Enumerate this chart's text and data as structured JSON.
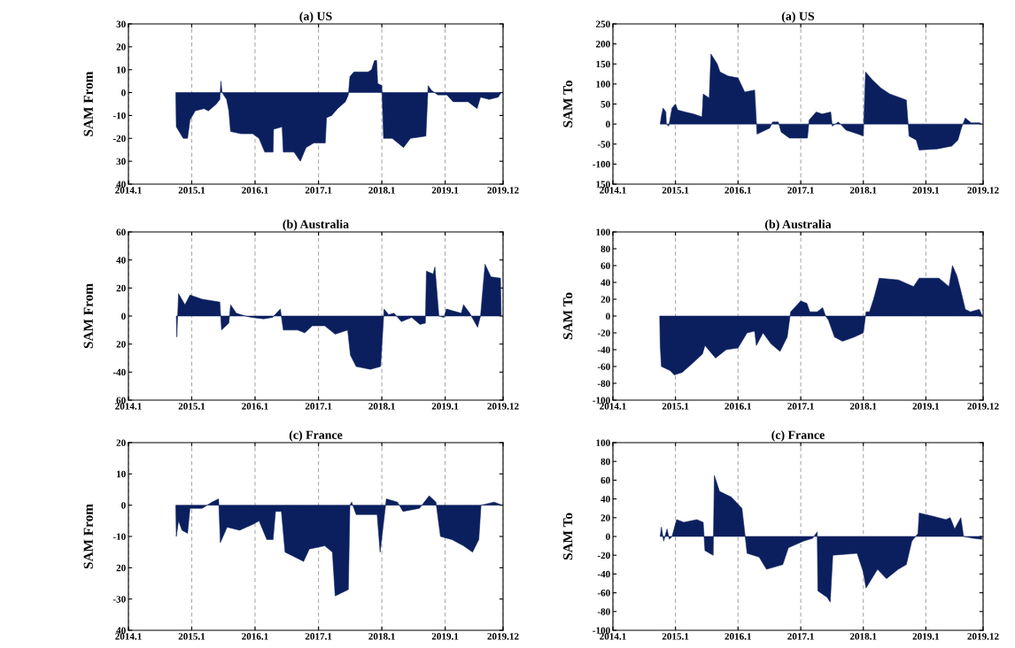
{
  "chart_data": [
    {
      "type": "area",
      "title": "(a) US",
      "ylabel": "SAM From",
      "color": "#0b1f5e",
      "grid": "x",
      "xlim": [
        "2014-01-01",
        "2019-12-01"
      ],
      "xticks": [
        {
          "value": "2014-01-01",
          "label": "2014.1"
        },
        {
          "value": "2015-01-01",
          "label": "2015.1"
        },
        {
          "value": "2016-01-01",
          "label": "2016.1"
        },
        {
          "value": "2017-01-01",
          "label": "2017.1"
        },
        {
          "value": "2018-01-01",
          "label": "2018.1"
        },
        {
          "value": "2019-01-01",
          "label": "2019.1"
        },
        {
          "value": "2019-12-01",
          "label": "2019.12"
        }
      ],
      "ylim": [
        -40,
        30
      ],
      "yticks": [
        {
          "value": -40,
          "label": "40"
        },
        {
          "value": -30,
          "label": "30"
        },
        -20,
        -10,
        0,
        10,
        20,
        30
      ],
      "x": [
        "2014-10-01",
        "2014-10-04",
        "2014-11-13",
        "2014-12-08",
        "2014-12-22",
        "2015-01-21",
        "2015-03-12",
        "2015-04-07",
        "2015-05-23",
        "2015-06-12",
        "2015-06-18",
        "2015-06-25",
        "2015-07-21",
        "2015-08-03",
        "2015-08-13",
        "2015-10-11",
        "2015-12-18",
        "2016-01-24",
        "2016-02-26",
        "2016-04-14",
        "2016-04-17",
        "2016-06-05",
        "2016-06-12",
        "2016-08-13",
        "2016-09-18",
        "2016-10-21",
        "2016-12-05",
        "2017-02-09",
        "2017-02-16",
        "2017-03-18",
        "2017-04-21",
        "2017-06-05",
        "2017-06-22",
        "2017-07-01",
        "2017-07-24",
        "2017-10-14",
        "2017-11-03",
        "2017-11-20",
        "2017-12-02",
        "2017-12-08",
        "2018-01-01",
        "2018-01-11",
        "2018-03-02",
        "2018-05-06",
        "2018-06-15",
        "2018-09-12",
        "2018-09-25",
        "2018-10-14",
        "2018-11-20",
        "2019-01-11",
        "2019-02-16",
        "2019-05-13",
        "2019-07-04",
        "2019-07-24",
        "2019-09-12",
        "2019-11-03",
        "2019-11-20"
      ],
      "values": [
        0,
        -15,
        -20,
        -20,
        -12,
        -8,
        -7,
        -8,
        -5,
        -3,
        5,
        0,
        -3,
        -8,
        -17,
        -18,
        -18,
        -20,
        -26,
        -26,
        -16,
        -15,
        -26,
        -26,
        -30,
        -24,
        -22,
        -22,
        -11,
        -10,
        -7,
        -4,
        -1,
        7,
        9,
        9,
        10,
        14,
        14,
        4,
        3,
        -20,
        -20,
        -24,
        -20,
        -19,
        3,
        1,
        -1,
        -1,
        -4,
        -4,
        -7,
        -2,
        -3,
        -2,
        0
      ]
    },
    {
      "type": "area",
      "title": "(a) US",
      "ylabel": "SAM To",
      "color": "#0b1f5e",
      "grid": "x",
      "xlim": [
        "2014-01-01",
        "2019-12-01"
      ],
      "xticks": [
        {
          "value": "2014-01-01",
          "label": "2014.1"
        },
        {
          "value": "2015-01-01",
          "label": "2015.1"
        },
        {
          "value": "2016-01-01",
          "label": "2016.1"
        },
        {
          "value": "2017-01-01",
          "label": "2017.1"
        },
        {
          "value": "2018-01-01",
          "label": "2018.1"
        },
        {
          "value": "2019-01-01",
          "label": "2019.1"
        },
        {
          "value": "2019-12-01",
          "label": "2019.12"
        }
      ],
      "ylim": [
        -150,
        250
      ],
      "yticks": [
        {
          "value": -150,
          "label": "150"
        },
        -100,
        -50,
        0,
        50,
        100,
        150,
        200,
        250
      ],
      "x": [
        "2014-10-04",
        "2014-10-11",
        "2014-10-21",
        "2014-11-06",
        "2014-11-09",
        "2014-11-23",
        "2014-12-12",
        "2015-01-01",
        "2015-01-14",
        "2015-02-26",
        "2015-04-17",
        "2015-06-05",
        "2015-06-12",
        "2015-07-17",
        "2015-07-27",
        "2015-09-02",
        "2015-09-18",
        "2015-11-03",
        "2016-01-01",
        "2016-02-09",
        "2016-04-07",
        "2016-04-21",
        "2016-07-04",
        "2016-07-21",
        "2016-08-23",
        "2016-09-09",
        "2016-10-27",
        "2017-02-09",
        "2017-02-19",
        "2017-04-01",
        "2017-05-06",
        "2017-06-25",
        "2017-07-04",
        "2017-08-09",
        "2017-09-22",
        "2017-12-02",
        "2018-01-01",
        "2018-01-14",
        "2018-02-23",
        "2018-04-14",
        "2018-06-05",
        "2018-09-09",
        "2018-09-25",
        "2018-11-06",
        "2018-11-23",
        "2019-03-09",
        "2019-06-01",
        "2019-07-07",
        "2019-07-27",
        "2019-08-19",
        "2019-09-22",
        "2019-11-13",
        "2019-11-16"
      ],
      "values": [
        0,
        20,
        40,
        30,
        0,
        -5,
        40,
        50,
        35,
        30,
        25,
        18,
        75,
        65,
        175,
        150,
        130,
        120,
        115,
        80,
        85,
        -25,
        -10,
        5,
        5,
        -20,
        -35,
        -35,
        10,
        30,
        25,
        30,
        -5,
        5,
        -15,
        -25,
        -30,
        130,
        110,
        90,
        75,
        60,
        -30,
        -40,
        -65,
        -62,
        -55,
        -40,
        -10,
        15,
        3,
        3,
        0
      ]
    },
    {
      "type": "area",
      "title": "(b) Australia",
      "ylabel": "SAM From",
      "color": "#0b1f5e",
      "grid": "x",
      "xlim": [
        "2014-01-01",
        "2019-12-01"
      ],
      "xticks": [
        {
          "value": "2014-01-01",
          "label": "2014.1"
        },
        {
          "value": "2015-01-01",
          "label": "2015.1"
        },
        {
          "value": "2016-01-01",
          "label": "2016.1"
        },
        {
          "value": "2017-01-01",
          "label": "2017.1"
        },
        {
          "value": "2018-01-01",
          "label": "2018.1"
        },
        {
          "value": "2019-01-01",
          "label": "2019.1"
        },
        {
          "value": "2019-12-01",
          "label": "2019.12"
        }
      ],
      "ylim": [
        -60,
        60
      ],
      "yticks": [
        {
          "value": -60,
          "label": "60"
        },
        -40,
        {
          "value": -20,
          "label": "20"
        },
        0,
        20,
        40,
        60
      ],
      "x": [
        "2014-10-04",
        "2014-10-07",
        "2014-10-17",
        "2014-11-23",
        "2014-12-22",
        "2015-03-02",
        "2015-06-12",
        "2015-06-22",
        "2015-08-03",
        "2015-08-13",
        "2015-09-15",
        "2015-11-06",
        "2015-12-12",
        "2016-02-19",
        "2016-04-11",
        "2016-05-26",
        "2016-06-12",
        "2016-09-02",
        "2016-10-14",
        "2016-11-26",
        "2017-02-06",
        "2017-04-07",
        "2017-06-18",
        "2017-07-04",
        "2017-08-06",
        "2017-10-27",
        "2017-12-25",
        "2018-01-14",
        "2018-02-09",
        "2018-03-12",
        "2018-04-24",
        "2018-06-22",
        "2018-08-09",
        "2018-09-09",
        "2018-09-15",
        "2018-10-24",
        "2018-11-03",
        "2018-11-26",
        "2018-12-25",
        "2019-01-08",
        "2019-04-04",
        "2019-04-17",
        "2019-05-23",
        "2019-07-07",
        "2019-07-24",
        "2019-08-19",
        "2019-09-22",
        "2019-11-16",
        "2019-11-20"
      ],
      "values": [
        0,
        -15,
        16,
        8,
        15,
        12,
        10,
        -10,
        -5,
        8,
        2,
        0,
        -1,
        -2,
        -1,
        5,
        -10,
        -10,
        -12,
        -7,
        -7,
        -13,
        -10,
        -28,
        -36,
        -38,
        -36,
        5,
        1,
        2,
        -4,
        -1,
        -6,
        -5,
        32,
        30,
        35,
        0,
        -1,
        5,
        2,
        8,
        2,
        -8,
        0,
        37,
        28,
        27,
        0
      ]
    },
    {
      "type": "area",
      "title": "(b) Australia",
      "ylabel": "SAM To",
      "color": "#0b1f5e",
      "grid": "x",
      "xlim": [
        "2014-01-01",
        "2019-12-01"
      ],
      "xticks": [
        {
          "value": "2014-01-01",
          "label": "2014.1"
        },
        {
          "value": "2015-01-01",
          "label": "2015.1"
        },
        {
          "value": "2016-01-01",
          "label": "2016.1"
        },
        {
          "value": "2017-01-01",
          "label": "2017.1"
        },
        {
          "value": "2018-01-01",
          "label": "2018.1"
        },
        {
          "value": "2019-01-01",
          "label": "2019.1"
        },
        {
          "value": "2019-12-01",
          "label": "2019.12"
        }
      ],
      "ylim": [
        -100,
        100
      ],
      "yticks": [
        -100,
        -80,
        -60,
        -40,
        -20,
        0,
        20,
        40,
        60,
        80,
        100
      ],
      "x": [
        "2014-10-01",
        "2014-10-04",
        "2014-10-11",
        "2014-12-02",
        "2014-12-25",
        "2015-02-09",
        "2015-04-17",
        "2015-06-08",
        "2015-06-22",
        "2015-08-23",
        "2015-10-24",
        "2016-01-01",
        "2016-02-23",
        "2016-04-07",
        "2016-04-17",
        "2016-05-26",
        "2016-07-11",
        "2016-09-02",
        "2016-10-14",
        "2016-11-03",
        "2017-01-01",
        "2017-02-06",
        "2017-02-23",
        "2017-04-07",
        "2017-05-09",
        "2017-05-26",
        "2017-06-12",
        "2017-07-17",
        "2017-09-02",
        "2017-11-09",
        "2018-01-01",
        "2018-01-17",
        "2018-02-06",
        "2018-03-02",
        "2018-04-04",
        "2018-07-24",
        "2018-10-21",
        "2018-11-23",
        "2019-03-18",
        "2019-05-16",
        "2019-06-05",
        "2019-07-01",
        "2019-07-24",
        "2019-08-19",
        "2019-09-18",
        "2019-11-09",
        "2019-11-26"
      ],
      "values": [
        0,
        -35,
        -60,
        -65,
        -70,
        -67,
        -55,
        -45,
        -35,
        -50,
        -40,
        -38,
        -20,
        -18,
        -35,
        -20,
        -33,
        -42,
        -25,
        5,
        18,
        15,
        5,
        5,
        10,
        0,
        -5,
        -25,
        -30,
        -25,
        -20,
        5,
        5,
        20,
        45,
        43,
        35,
        45,
        45,
        35,
        60,
        48,
        30,
        8,
        5,
        8,
        0
      ]
    },
    {
      "type": "area",
      "title": "(c) France",
      "ylabel": "SAM From",
      "color": "#0b1f5e",
      "grid": "x",
      "xlim": [
        "2014-01-01",
        "2019-12-01"
      ],
      "xticks": [
        {
          "value": "2014-01-01",
          "label": "2014.1"
        },
        {
          "value": "2015-01-01",
          "label": "2015.1"
        },
        {
          "value": "2016-01-01",
          "label": "2016.1"
        },
        {
          "value": "2017-01-01",
          "label": "2017.1"
        },
        {
          "value": "2018-01-01",
          "label": "2018.1"
        },
        {
          "value": "2019-01-01",
          "label": "2019.1"
        },
        {
          "value": "2019-12-01",
          "label": "2019.12"
        }
      ],
      "ylim": [
        -40,
        20
      ],
      "yticks": [
        {
          "value": -40,
          "label": "40"
        },
        -30,
        {
          "value": -20,
          "label": "20"
        },
        -10,
        0,
        10,
        20
      ],
      "x": [
        "2014-10-01",
        "2014-10-04",
        "2014-10-17",
        "2014-11-06",
        "2014-12-08",
        "2014-12-22",
        "2015-03-02",
        "2015-04-28",
        "2015-06-05",
        "2015-06-15",
        "2015-07-24",
        "2015-10-04",
        "2015-12-25",
        "2016-01-24",
        "2016-03-09",
        "2016-04-14",
        "2016-04-28",
        "2016-06-01",
        "2016-06-22",
        "2016-09-02",
        "2016-10-07",
        "2016-11-09",
        "2017-02-06",
        "2017-03-22",
        "2017-04-07",
        "2017-06-22",
        "2017-07-01",
        "2017-07-11",
        "2017-08-06",
        "2017-12-05",
        "2017-12-22",
        "2018-01-27",
        "2018-04-01",
        "2018-05-03",
        "2018-08-06",
        "2018-10-01",
        "2018-11-09",
        "2018-12-05",
        "2019-02-09",
        "2019-04-17",
        "2019-06-08",
        "2019-07-14",
        "2019-07-27",
        "2019-10-11",
        "2019-11-26"
      ],
      "values": [
        0,
        -10,
        -5,
        -8,
        -9,
        -1,
        -1,
        1,
        2,
        -12,
        -7,
        -8,
        -6,
        -5,
        -11,
        -11,
        -2,
        -2,
        -15,
        -17,
        -18,
        -14,
        -13,
        -15,
        -29,
        -27,
        0,
        1,
        -3,
        -3,
        -15,
        2,
        1,
        -2,
        -1,
        3,
        1,
        -10,
        -11,
        -13,
        -15,
        -11,
        0,
        1,
        0
      ]
    },
    {
      "type": "area",
      "title": "(c) France",
      "ylabel": "SAM To",
      "color": "#0b1f5e",
      "grid": "x",
      "xlim": [
        "2014-01-01",
        "2019-12-01"
      ],
      "xticks": [
        {
          "value": "2014-01-01",
          "label": "2014.1"
        },
        {
          "value": "2015-01-01",
          "label": "2015.1"
        },
        {
          "value": "2016-01-01",
          "label": "2016.1"
        },
        {
          "value": "2017-01-01",
          "label": "2017.1"
        },
        {
          "value": "2018-01-01",
          "label": "2018.1"
        },
        {
          "value": "2019-01-01",
          "label": "2019.1"
        },
        {
          "value": "2019-12-01",
          "label": "2019.12"
        }
      ],
      "ylim": [
        -100,
        100
      ],
      "yticks": [
        -100,
        -80,
        -60,
        -40,
        -20,
        0,
        20,
        40,
        60,
        80,
        100
      ],
      "x": [
        "2014-10-04",
        "2014-10-11",
        "2014-10-24",
        "2014-11-13",
        "2014-11-26",
        "2014-12-12",
        "2015-01-08",
        "2015-02-19",
        "2015-05-06",
        "2015-06-12",
        "2015-06-22",
        "2015-08-09",
        "2015-08-16",
        "2015-09-15",
        "2015-11-23",
        "2016-01-24",
        "2016-02-23",
        "2016-05-03",
        "2016-06-15",
        "2016-09-18",
        "2016-10-21",
        "2017-01-17",
        "2017-03-12",
        "2017-04-07",
        "2017-04-11",
        "2017-06-05",
        "2017-06-22",
        "2017-07-07",
        "2017-11-26",
        "2018-01-01",
        "2018-01-17",
        "2018-03-25",
        "2018-05-16",
        "2018-07-24",
        "2018-09-09",
        "2018-10-11",
        "2018-11-16",
        "2018-11-23",
        "2019-02-02",
        "2019-04-28",
        "2019-05-23",
        "2019-06-18",
        "2019-07-24",
        "2019-08-09",
        "2019-10-04",
        "2019-11-23"
      ],
      "values": [
        0,
        10,
        -5,
        8,
        -3,
        0,
        18,
        15,
        18,
        15,
        -15,
        -20,
        65,
        48,
        42,
        30,
        -18,
        -22,
        -35,
        -30,
        -12,
        -5,
        -2,
        5,
        -58,
        -65,
        -70,
        -20,
        -18,
        -38,
        -55,
        -35,
        -45,
        -35,
        -30,
        -5,
        3,
        25,
        22,
        18,
        20,
        8,
        20,
        0,
        -2,
        -3
      ]
    }
  ]
}
